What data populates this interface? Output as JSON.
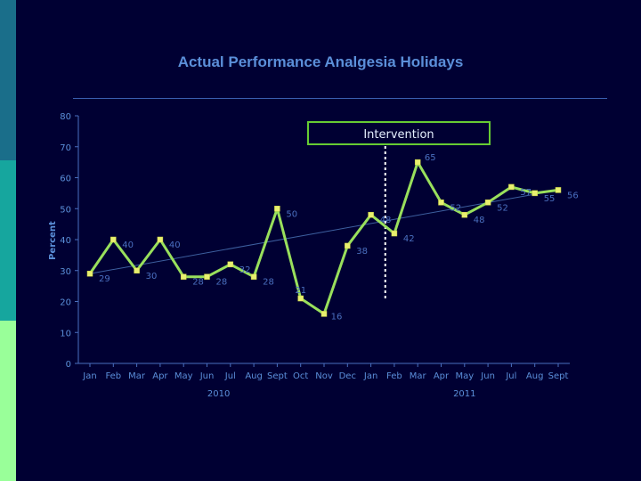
{
  "chart_data": {
    "type": "line",
    "title": "Actual Performance Analgesia Holidays",
    "ylabel": "Percent",
    "ylim": [
      0,
      80
    ],
    "yticks": [
      0,
      10,
      20,
      30,
      40,
      50,
      60,
      70,
      80
    ],
    "categories": [
      "Jan",
      "Feb",
      "Mar",
      "Apr",
      "May",
      "Jun",
      "Jul",
      "Aug",
      "Sept",
      "Oct",
      "Nov",
      "Dec",
      "Jan",
      "Feb",
      "Mar",
      "Apr",
      "May",
      "Jun",
      "Jul",
      "Aug",
      "Sept"
    ],
    "year_labels": [
      {
        "label": "2010",
        "at_index": 5.5
      },
      {
        "label": "2011",
        "at_index": 16
      }
    ],
    "series": [
      {
        "values": [
          29,
          40,
          30,
          40,
          28,
          28,
          32,
          28,
          50,
          21,
          16,
          38,
          48,
          42,
          65,
          52,
          48,
          52,
          57,
          55,
          56
        ]
      }
    ],
    "trendline": {
      "start": 29,
      "end": 56
    },
    "annotation": {
      "text": "Intervention",
      "between_index": [
        12,
        13
      ]
    },
    "colors": {
      "line": "#99e05c",
      "marker": "#e8f070",
      "background": "#000033",
      "intervention_box": "#66cc33"
    },
    "grid": false,
    "legend": "none"
  }
}
